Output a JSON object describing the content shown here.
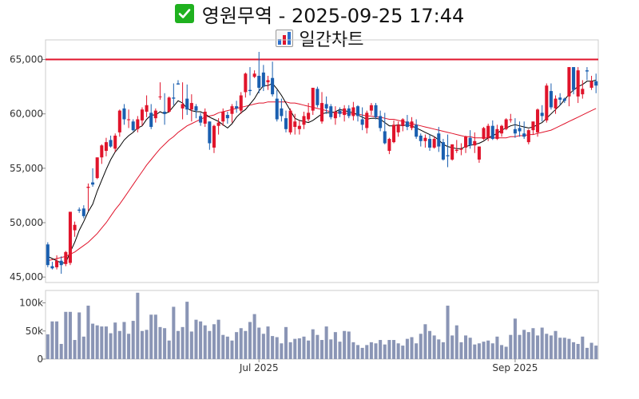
{
  "header": {
    "title": "영원무역 - 2025-09-25 17:44",
    "subtitle": "일간차트",
    "title_icon": "check-icon",
    "subtitle_icon": "bar-chart-icon"
  },
  "colors": {
    "up": "#e0142b",
    "down": "#1a5fb0",
    "ma_short": "#000000",
    "ma_long": "#e0142b",
    "resistance": "#e0142b",
    "volume": "#8a95b5",
    "check_bg": "#1fb11f"
  },
  "chart_data": [
    {
      "type": "candlestick",
      "title": "영원무역 - 2025-09-25 17:44",
      "subtitle": "일간차트",
      "y_ticks": [
        "45,000",
        "50,000",
        "55,000",
        "60,000",
        "65,000"
      ],
      "y_tick_values": [
        45000,
        50000,
        55000,
        60000,
        65000
      ],
      "ylim": [
        44500,
        66800
      ],
      "x_ticks": [
        "Jul 2025",
        "Sep 2025"
      ],
      "x_tick_positions": [
        47,
        104
      ],
      "horizontal_line": 65000,
      "grid": false,
      "ohlc": [
        [
          48000,
          48200,
          45900,
          46100
        ],
        [
          46000,
          46400,
          45700,
          45800
        ],
        [
          45900,
          47000,
          45700,
          46500
        ],
        [
          46500,
          46900,
          45300,
          46100
        ],
        [
          46200,
          47400,
          46000,
          47300
        ],
        [
          46300,
          51000,
          46100,
          51000
        ],
        [
          49300,
          50100,
          48700,
          49800
        ],
        [
          51200,
          51400,
          50900,
          51100
        ],
        [
          51300,
          51600,
          50400,
          50600
        ],
        [
          53200,
          53600,
          51100,
          53300
        ],
        [
          53700,
          55000,
          53300,
          53500
        ],
        [
          54100,
          56000,
          54000,
          56000
        ],
        [
          56000,
          57200,
          55400,
          57100
        ],
        [
          56600,
          57800,
          56100,
          57400
        ],
        [
          57600,
          58000,
          56900,
          57000
        ],
        [
          56800,
          58200,
          56500,
          58000
        ],
        [
          58300,
          60400,
          57900,
          60300
        ],
        [
          60500,
          60900,
          59000,
          59500
        ],
        [
          59500,
          60400,
          58700,
          59500
        ],
        [
          59300,
          59500,
          58400,
          58500
        ],
        [
          58600,
          59800,
          58300,
          59500
        ],
        [
          59400,
          60600,
          58900,
          60400
        ],
        [
          60200,
          61700,
          59700,
          60800
        ],
        [
          60100,
          60900,
          58600,
          58800
        ],
        [
          59600,
          60500,
          59200,
          60300
        ],
        [
          61600,
          62900,
          61300,
          61600
        ],
        [
          60200,
          61900,
          59000,
          60000
        ],
        [
          60200,
          61600,
          60100,
          61500
        ],
        [
          61500,
          62800,
          60800,
          61400
        ],
        [
          62800,
          63100,
          62700,
          62700
        ],
        [
          60500,
          62900,
          59500,
          60900
        ],
        [
          61400,
          62700,
          59900,
          60400
        ],
        [
          60400,
          61800,
          59300,
          61000
        ],
        [
          60700,
          60900,
          59600,
          60300
        ],
        [
          59800,
          60100,
          58900,
          59200
        ],
        [
          59100,
          60500,
          58800,
          60200
        ],
        [
          59300,
          59300,
          56700,
          57300
        ],
        [
          56900,
          59000,
          56400,
          58900
        ],
        [
          58900,
          59600,
          58100,
          59200
        ],
        [
          59300,
          60500,
          58900,
          60200
        ],
        [
          59900,
          60200,
          59100,
          59600
        ],
        [
          60000,
          60900,
          59200,
          60700
        ],
        [
          60700,
          61200,
          60100,
          60500
        ],
        [
          60300,
          62000,
          60000,
          61700
        ],
        [
          62000,
          63800,
          61500,
          63700
        ],
        [
          62200,
          64300,
          61700,
          62100
        ],
        [
          63400,
          64000,
          63300,
          63700
        ],
        [
          63500,
          65700,
          61900,
          62400
        ],
        [
          63800,
          64500,
          62100,
          62500
        ],
        [
          62900,
          63500,
          62200,
          63100
        ],
        [
          63300,
          64800,
          61600,
          61800
        ],
        [
          61400,
          62200,
          59300,
          59500
        ],
        [
          60500,
          61400,
          59300,
          59800
        ],
        [
          59600,
          60300,
          58300,
          58600
        ],
        [
          58300,
          60500,
          58100,
          60300
        ],
        [
          58800,
          60000,
          58100,
          59300
        ],
        [
          58600,
          59400,
          58100,
          58900
        ],
        [
          59000,
          60200,
          58600,
          59800
        ],
        [
          59500,
          61000,
          59300,
          60100
        ],
        [
          60300,
          62400,
          59900,
          62400
        ],
        [
          62300,
          62500,
          60600,
          60800
        ],
        [
          59300,
          62000,
          59100,
          61000
        ],
        [
          60900,
          61600,
          60000,
          60500
        ],
        [
          60700,
          60900,
          59500,
          59700
        ],
        [
          59600,
          60700,
          59000,
          60200
        ],
        [
          60300,
          60600,
          59700,
          60000
        ],
        [
          59900,
          60800,
          59300,
          60500
        ],
        [
          60500,
          60800,
          59600,
          59800
        ],
        [
          59800,
          61100,
          59400,
          60600
        ],
        [
          60700,
          60800,
          59300,
          59800
        ],
        [
          59500,
          60600,
          58500,
          59000
        ],
        [
          58700,
          60300,
          58200,
          60100
        ],
        [
          60300,
          61000,
          59900,
          60800
        ],
        [
          60800,
          61000,
          59500,
          59700
        ],
        [
          59800,
          60300,
          58400,
          58700
        ],
        [
          58400,
          60100,
          57200,
          57300
        ],
        [
          56600,
          57800,
          56300,
          57700
        ],
        [
          57400,
          59400,
          57300,
          59000
        ],
        [
          58300,
          59300,
          57900,
          59000
        ],
        [
          58900,
          59600,
          58400,
          59500
        ],
        [
          59300,
          59900,
          58500,
          58800
        ],
        [
          58700,
          59700,
          58500,
          59300
        ],
        [
          59000,
          59500,
          57700,
          57900
        ],
        [
          58000,
          58200,
          57000,
          57500
        ],
        [
          57500,
          58100,
          56900,
          57800
        ],
        [
          57700,
          58100,
          56600,
          56900
        ],
        [
          56900,
          57900,
          56800,
          57700
        ],
        [
          58200,
          58800,
          56500,
          57000
        ],
        [
          57400,
          57700,
          55700,
          55800
        ],
        [
          56200,
          58100,
          55100,
          56100
        ],
        [
          55800,
          57200,
          55700,
          57200
        ],
        [
          56600,
          57600,
          56400,
          56700
        ],
        [
          56700,
          57300,
          56200,
          56800
        ],
        [
          56900,
          58000,
          56400,
          57900
        ],
        [
          57800,
          58500,
          56800,
          57100
        ],
        [
          57100,
          58300,
          56400,
          57500
        ],
        [
          55800,
          57000,
          55500,
          57000
        ],
        [
          57700,
          58800,
          57600,
          58700
        ],
        [
          57800,
          59100,
          57500,
          58900
        ],
        [
          58900,
          59400,
          57600,
          57700
        ],
        [
          57700,
          59000,
          57600,
          58600
        ],
        [
          58200,
          59000,
          57900,
          58900
        ],
        [
          58600,
          59600,
          58500,
          59500
        ],
        [
          59500,
          60000,
          59200,
          59500
        ],
        [
          58600,
          59600,
          57800,
          58200
        ],
        [
          58700,
          59300,
          57900,
          58400
        ],
        [
          58200,
          59300,
          57700,
          57900
        ],
        [
          57400,
          58600,
          57200,
          58500
        ],
        [
          58500,
          59300,
          58100,
          59300
        ],
        [
          58300,
          60500,
          57900,
          60400
        ],
        [
          60100,
          60800,
          59300,
          59800
        ],
        [
          59400,
          62800,
          59200,
          62600
        ],
        [
          62100,
          62800,
          60400,
          60600
        ],
        [
          60500,
          61700,
          60000,
          61400
        ],
        [
          61500,
          61900,
          60800,
          61300
        ],
        [
          61400,
          61500,
          61000,
          61200
        ],
        [
          61600,
          64300,
          60700,
          64300
        ],
        [
          64300,
          64300,
          61800,
          62200
        ],
        [
          61600,
          64300,
          61000,
          64000
        ],
        [
          61800,
          63100,
          61400,
          62300
        ],
        [
          64000,
          64300,
          63100,
          63900
        ],
        [
          62400,
          63500,
          62200,
          63000
        ],
        [
          63000,
          63700,
          61900,
          62600
        ]
      ],
      "ma5": [
        46900,
        46700,
        46500,
        46300,
        46300,
        47300,
        48200,
        49300,
        50100,
        51000,
        51700,
        52900,
        53900,
        54900,
        55800,
        56500,
        57000,
        57600,
        58000,
        58300,
        58700,
        58900,
        59500,
        59900,
        59900,
        60200,
        60000,
        60200,
        60700,
        61200,
        61000,
        60500,
        60300,
        60200,
        60200,
        60000,
        59700,
        59500,
        59300,
        59000,
        58700,
        59100,
        59700,
        60100,
        60400,
        60900,
        61400,
        62100,
        62600,
        62600,
        62800,
        62300,
        61700,
        61000,
        60300,
        59600,
        59400,
        59300,
        59200,
        59400,
        59700,
        60000,
        60100,
        60100,
        60200,
        60400,
        60300,
        60200,
        60100,
        59900,
        59700,
        59500,
        59600,
        59600,
        59500,
        59200,
        58900,
        58900,
        59000,
        58900,
        59000,
        58900,
        58700,
        58500,
        58300,
        58100,
        57900,
        57600,
        57200,
        57000,
        56900,
        56800,
        56800,
        57000,
        57100,
        57200,
        57300,
        57500,
        57800,
        58000,
        58200,
        58500,
        58700,
        58900,
        59000,
        58900,
        58800,
        58700,
        58800,
        59000,
        59200,
        59600,
        60000,
        60400,
        60800,
        61300,
        61800,
        62200,
        62500,
        62700,
        63000,
        63000,
        63100
      ],
      "ma20": [
        46500,
        46600,
        46700,
        46800,
        46900,
        47100,
        47300,
        47600,
        47900,
        48200,
        48600,
        49000,
        49500,
        50000,
        50600,
        51200,
        51700,
        52300,
        52900,
        53500,
        54100,
        54700,
        55300,
        55800,
        56300,
        56800,
        57200,
        57600,
        57900,
        58300,
        58600,
        58900,
        59100,
        59300,
        59500,
        59700,
        59800,
        59900,
        60100,
        60200,
        60300,
        60400,
        60500,
        60600,
        60700,
        60800,
        60900,
        61000,
        61000,
        61100,
        61100,
        61100,
        61100,
        61100,
        61000,
        61000,
        60900,
        60800,
        60700,
        60600,
        60500,
        60400,
        60300,
        60200,
        60100,
        60100,
        60100,
        60000,
        60000,
        60000,
        59900,
        59800,
        59800,
        59700,
        59700,
        59600,
        59500,
        59500,
        59400,
        59300,
        59200,
        59100,
        59000,
        58900,
        58800,
        58700,
        58600,
        58500,
        58400,
        58300,
        58200,
        58100,
        58000,
        57900,
        57900,
        57800,
        57800,
        57800,
        57800,
        57800,
        57800,
        57800,
        57800,
        57900,
        57900,
        58000,
        58000,
        58100,
        58100,
        58200,
        58300,
        58400,
        58500,
        58700,
        58900,
        59100,
        59300,
        59500,
        59700,
        59900,
        60100,
        60300,
        60500
      ]
    },
    {
      "type": "bar",
      "title": "",
      "y_ticks": [
        "0",
        "50k",
        "100k"
      ],
      "y_tick_values": [
        0,
        50000,
        100000
      ],
      "ylim": [
        0,
        122000
      ],
      "values": [
        44000,
        67000,
        67000,
        27000,
        84000,
        84000,
        34000,
        83000,
        40000,
        95000,
        63000,
        60000,
        58000,
        58000,
        46000,
        65000,
        50000,
        66000,
        45000,
        68000,
        118000,
        50000,
        52000,
        79000,
        79000,
        57000,
        55000,
        33000,
        93000,
        50000,
        57000,
        102000,
        49000,
        70000,
        67000,
        60000,
        50000,
        62000,
        70000,
        43000,
        40000,
        33000,
        48000,
        55000,
        50000,
        66000,
        80000,
        56000,
        45000,
        58000,
        41000,
        39000,
        28000,
        57000,
        30000,
        36000,
        37000,
        40000,
        33000,
        53000,
        43000,
        34000,
        58000,
        35000,
        48000,
        31000,
        50000,
        49000,
        30000,
        25000,
        20000,
        25000,
        30000,
        28000,
        34000,
        26000,
        34000,
        34000,
        28000,
        24000,
        36000,
        39000,
        28000,
        45000,
        62000,
        50000,
        42000,
        35000,
        30000,
        95000,
        42000,
        60000,
        30000,
        42000,
        38000,
        26000,
        28000,
        31000,
        33000,
        28000,
        40000,
        25000,
        22000,
        43000,
        72000,
        43000,
        52000,
        48000,
        55000,
        42000,
        56000,
        45000,
        42000,
        50000,
        38000,
        38000,
        36000,
        30000,
        27000,
        40000,
        20000,
        29000,
        24000
      ]
    }
  ]
}
